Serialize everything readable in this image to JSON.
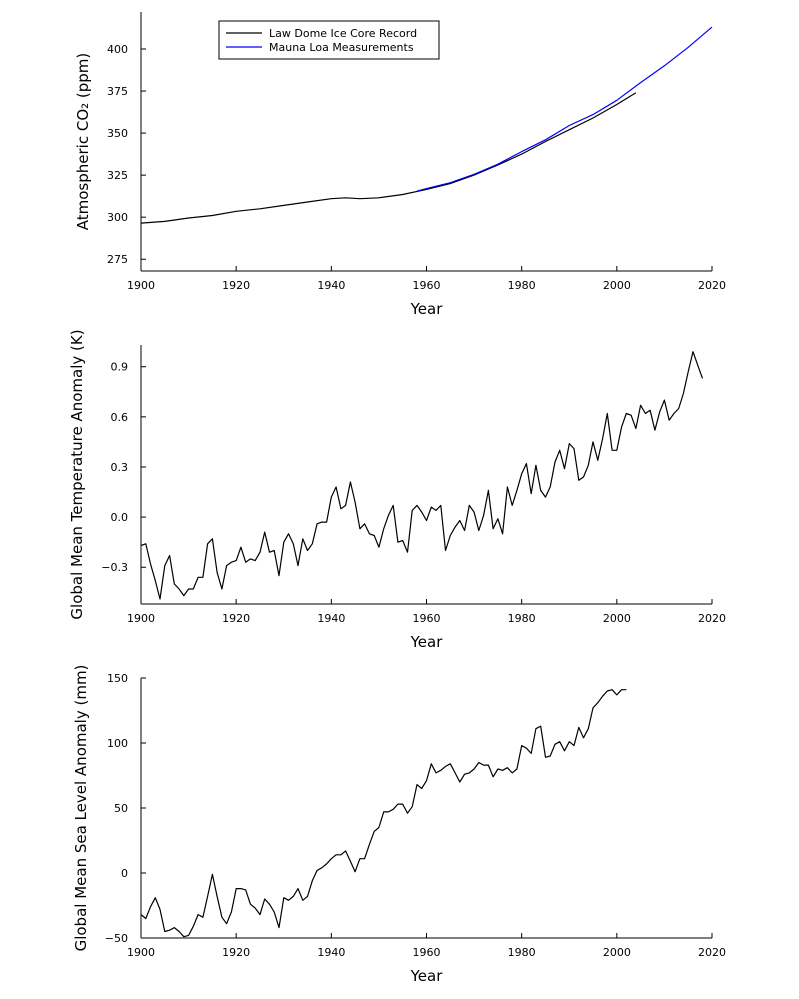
{
  "chart_data": [
    {
      "type": "line",
      "xlabel": "Year",
      "ylabel": "Atmospheric CO₂ (ppm)",
      "xlim": [
        1900,
        2020
      ],
      "ylim": [
        268,
        422
      ],
      "xticks": [
        1900,
        1920,
        1940,
        1960,
        1980,
        2000,
        2020
      ],
      "yticks": [
        275,
        300,
        325,
        350,
        375,
        400
      ],
      "grid": false,
      "legend": "top-left",
      "series": [
        {
          "name": "Law Dome Ice Core Record",
          "color": "#000000",
          "x": [
            1900,
            1905,
            1910,
            1915,
            1920,
            1925,
            1930,
            1935,
            1940,
            1943,
            1946,
            1950,
            1955,
            1960,
            1965,
            1970,
            1975,
            1980,
            1985,
            1990,
            1995,
            2000,
            2004
          ],
          "values": [
            296.5,
            297.5,
            299.5,
            301,
            303.5,
            305,
            307,
            309,
            311,
            311.5,
            311,
            311.5,
            313.5,
            316.5,
            320,
            325,
            331,
            337.5,
            345,
            352,
            359,
            367,
            374
          ]
        },
        {
          "name": "Mauna Loa Measurements",
          "color": "#0000ff",
          "x": [
            1958,
            1960,
            1965,
            1970,
            1975,
            1980,
            1985,
            1990,
            1995,
            2000,
            2005,
            2010,
            2015,
            2020
          ],
          "values": [
            315.5,
            317,
            320.5,
            325.5,
            331.5,
            339,
            346,
            354.5,
            361,
            369.5,
            380,
            390,
            401,
            413
          ]
        }
      ]
    },
    {
      "type": "line",
      "xlabel": "Year",
      "ylabel": "Global Mean Temperature Anomaly (K)",
      "xlim": [
        1900,
        2020
      ],
      "ylim": [
        -0.52,
        1.03
      ],
      "xticks": [
        1900,
        1920,
        1940,
        1960,
        1980,
        2000,
        2020
      ],
      "yticks": [
        -0.3,
        0.0,
        0.3,
        0.6,
        0.9
      ],
      "ytick_labels": [
        "−0.3",
        "0.0",
        "0.3",
        "0.6",
        "0.9"
      ],
      "grid": false,
      "series": [
        {
          "color": "#000000",
          "x": [
            1900,
            1901,
            1902,
            1903,
            1904,
            1905,
            1906,
            1907,
            1908,
            1909,
            1910,
            1911,
            1912,
            1913,
            1914,
            1915,
            1916,
            1917,
            1918,
            1919,
            1920,
            1921,
            1922,
            1923,
            1924,
            1925,
            1926,
            1927,
            1928,
            1929,
            1930,
            1931,
            1932,
            1933,
            1934,
            1935,
            1936,
            1937,
            1938,
            1939,
            1940,
            1941,
            1942,
            1943,
            1944,
            1945,
            1946,
            1947,
            1948,
            1949,
            1950,
            1951,
            1952,
            1953,
            1954,
            1955,
            1956,
            1957,
            1958,
            1959,
            1960,
            1961,
            1962,
            1963,
            1964,
            1965,
            1966,
            1967,
            1968,
            1969,
            1970,
            1971,
            1972,
            1973,
            1974,
            1975,
            1976,
            1977,
            1978,
            1979,
            1980,
            1981,
            1982,
            1983,
            1984,
            1985,
            1986,
            1987,
            1988,
            1989,
            1990,
            1991,
            1992,
            1993,
            1994,
            1995,
            1996,
            1997,
            1998,
            1999,
            2000,
            2001,
            2002,
            2003,
            2004,
            2005,
            2006,
            2007,
            2008,
            2009,
            2010,
            2011,
            2012,
            2013,
            2014,
            2015,
            2016,
            2017,
            2018
          ],
          "values": [
            -0.17,
            -0.16,
            -0.28,
            -0.38,
            -0.49,
            -0.29,
            -0.23,
            -0.4,
            -0.43,
            -0.47,
            -0.43,
            -0.43,
            -0.36,
            -0.36,
            -0.16,
            -0.13,
            -0.33,
            -0.43,
            -0.29,
            -0.27,
            -0.26,
            -0.18,
            -0.27,
            -0.25,
            -0.26,
            -0.21,
            -0.09,
            -0.21,
            -0.2,
            -0.35,
            -0.15,
            -0.1,
            -0.16,
            -0.29,
            -0.13,
            -0.2,
            -0.16,
            -0.04,
            -0.03,
            -0.03,
            0.12,
            0.18,
            0.05,
            0.07,
            0.21,
            0.09,
            -0.07,
            -0.04,
            -0.1,
            -0.11,
            -0.18,
            -0.07,
            0.01,
            0.07,
            -0.15,
            -0.14,
            -0.21,
            0.04,
            0.07,
            0.03,
            -0.02,
            0.06,
            0.04,
            0.07,
            -0.2,
            -0.11,
            -0.06,
            -0.02,
            -0.08,
            0.07,
            0.03,
            -0.08,
            0.01,
            0.16,
            -0.07,
            -0.01,
            -0.1,
            0.18,
            0.07,
            0.16,
            0.26,
            0.32,
            0.14,
            0.31,
            0.16,
            0.12,
            0.18,
            0.33,
            0.4,
            0.29,
            0.44,
            0.41,
            0.22,
            0.24,
            0.31,
            0.45,
            0.34,
            0.47,
            0.62,
            0.4,
            0.4,
            0.54,
            0.62,
            0.61,
            0.53,
            0.67,
            0.62,
            0.64,
            0.52,
            0.63,
            0.7,
            0.58,
            0.62,
            0.65,
            0.74,
            0.87,
            0.99,
            0.91,
            0.83
          ]
        }
      ]
    },
    {
      "type": "line",
      "xlabel": "Year",
      "ylabel": "Global Mean Sea Level Anomaly (mm)",
      "xlim": [
        1900,
        2020
      ],
      "ylim": [
        -50,
        150
      ],
      "xticks": [
        1900,
        1920,
        1940,
        1960,
        1980,
        2000,
        2020
      ],
      "yticks": [
        -50,
        0,
        50,
        100,
        150
      ],
      "ytick_labels": [
        "−50",
        "0",
        "50",
        "100",
        "150"
      ],
      "grid": false,
      "series": [
        {
          "color": "#000000",
          "x": [
            1900,
            1901,
            1902,
            1903,
            1904,
            1905,
            1906,
            1907,
            1908,
            1909,
            1910,
            1911,
            1912,
            1913,
            1914,
            1915,
            1916,
            1917,
            1918,
            1919,
            1920,
            1921,
            1922,
            1923,
            1924,
            1925,
            1926,
            1927,
            1928,
            1929,
            1930,
            1931,
            1932,
            1933,
            1934,
            1935,
            1936,
            1937,
            1938,
            1939,
            1940,
            1941,
            1942,
            1943,
            1944,
            1945,
            1946,
            1947,
            1948,
            1949,
            1950,
            1951,
            1952,
            1953,
            1954,
            1955,
            1956,
            1957,
            1958,
            1959,
            1960,
            1961,
            1962,
            1963,
            1964,
            1965,
            1966,
            1967,
            1968,
            1969,
            1970,
            1971,
            1972,
            1973,
            1974,
            1975,
            1976,
            1977,
            1978,
            1979,
            1980,
            1981,
            1982,
            1983,
            1984,
            1985,
            1986,
            1987,
            1988,
            1989,
            1990,
            1991,
            1992,
            1993,
            1994,
            1995,
            1996,
            1997,
            1998,
            1999,
            2000,
            2001,
            2002
          ],
          "values": [
            -32,
            -35,
            -26,
            -19,
            -28,
            -45,
            -44,
            -42,
            -45,
            -49,
            -48,
            -41,
            -32,
            -34,
            -18,
            -1,
            -18,
            -34,
            -39,
            -30,
            -12,
            -12,
            -13,
            -24,
            -27,
            -32,
            -20,
            -24,
            -30,
            -42,
            -19,
            -21,
            -18,
            -12,
            -21,
            -18,
            -6,
            2,
            4,
            7,
            11,
            14,
            14,
            17,
            9,
            1,
            11,
            11,
            22,
            32,
            35,
            47,
            47,
            49,
            53,
            53,
            46,
            51,
            68,
            65,
            71,
            84,
            77,
            79,
            82,
            84,
            77,
            70,
            76,
            77,
            80,
            85,
            83,
            83,
            74,
            80,
            79,
            81,
            77,
            80,
            98,
            96,
            92,
            111,
            113,
            89,
            90,
            99,
            101,
            94,
            101,
            98,
            112,
            104,
            111,
            127,
            131,
            136,
            140,
            141,
            137,
            141,
            141
          ]
        }
      ]
    }
  ]
}
